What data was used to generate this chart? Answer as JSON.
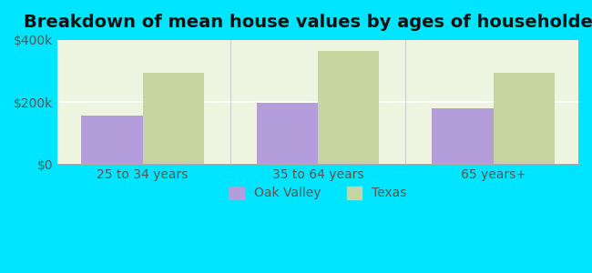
{
  "title": "Breakdown of mean house values by ages of householders",
  "categories": [
    "25 to 34 years",
    "35 to 64 years",
    "65 years+"
  ],
  "oak_valley_values": [
    155000,
    197000,
    180000
  ],
  "texas_values": [
    295000,
    365000,
    295000
  ],
  "oak_valley_color": "#b39ddb",
  "texas_color": "#c5d5a0",
  "ylim": [
    0,
    400000
  ],
  "yticks": [
    0,
    200000,
    400000
  ],
  "ytick_labels": [
    "$0",
    "$200k",
    "$400k"
  ],
  "background_color": "#00e5ff",
  "plot_bg_color_top": "#e8f5e9",
  "plot_bg_color_bottom": "#f9fff9",
  "legend_labels": [
    "Oak Valley",
    "Texas"
  ],
  "bar_width": 0.35,
  "title_fontsize": 14,
  "tick_fontsize": 10,
  "legend_fontsize": 10
}
